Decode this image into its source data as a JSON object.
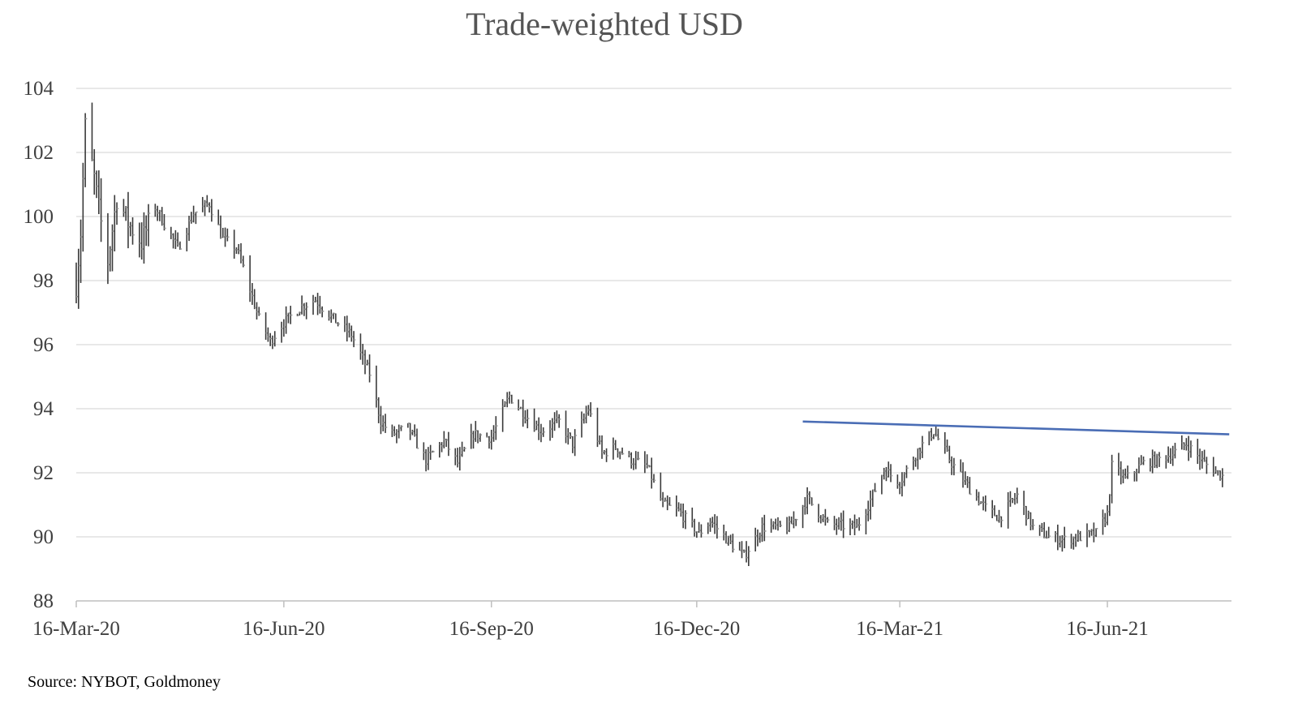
{
  "chart_data": {
    "type": "ohlc",
    "title": "Trade-weighted USD",
    "source": "Source: NYBOT, Goldmoney",
    "xlabel": "",
    "ylabel": "",
    "ylim": [
      88,
      104
    ],
    "y_ticks": [
      "104",
      "102",
      "100",
      "98",
      "96",
      "94",
      "92",
      "90",
      "88"
    ],
    "x_ticks": [
      "16-Mar-20",
      "16-Jun-20",
      "16-Sep-20",
      "16-Dec-20",
      "16-Mar-21",
      "16-Jun-21"
    ],
    "grid": true,
    "bar_color": "#3a3a3a",
    "trendline_color": "#4a6db5",
    "trendline": {
      "from": {
        "date": "2021-02-01",
        "value": 93.6
      },
      "to": {
        "date": "2021-08-09",
        "value": 93.2
      }
    },
    "anchors": [
      [
        "2020-03-16",
        97.9
      ],
      [
        "2020-03-18",
        99.5
      ],
      [
        "2020-03-20",
        102.8
      ],
      [
        "2020-03-24",
        101.2
      ],
      [
        "2020-03-26",
        100.2
      ],
      [
        "2020-03-30",
        98.6
      ],
      [
        "2020-04-03",
        100.6
      ],
      [
        "2020-04-08",
        99.8
      ],
      [
        "2020-04-14",
        99.2
      ],
      [
        "2020-04-20",
        100.3
      ],
      [
        "2020-04-30",
        99.0
      ],
      [
        "2020-05-07",
        100.1
      ],
      [
        "2020-05-14",
        100.4
      ],
      [
        "2020-05-20",
        99.3
      ],
      [
        "2020-05-26",
        99.0
      ],
      [
        "2020-05-29",
        98.4
      ],
      [
        "2020-06-05",
        96.8
      ],
      [
        "2020-06-10",
        96.1
      ],
      [
        "2020-06-16",
        96.7
      ],
      [
        "2020-06-24",
        97.2
      ],
      [
        "2020-06-30",
        97.4
      ],
      [
        "2020-07-08",
        96.8
      ],
      [
        "2020-07-16",
        96.3
      ],
      [
        "2020-07-24",
        95.1
      ],
      [
        "2020-07-29",
        93.6
      ],
      [
        "2020-08-03",
        93.2
      ],
      [
        "2020-08-10",
        93.4
      ],
      [
        "2020-08-18",
        92.4
      ],
      [
        "2020-08-26",
        93.0
      ],
      [
        "2020-09-01",
        92.3
      ],
      [
        "2020-09-08",
        93.2
      ],
      [
        "2020-09-16",
        93.1
      ],
      [
        "2020-09-24",
        94.4
      ],
      [
        "2020-10-01",
        93.8
      ],
      [
        "2020-10-08",
        93.3
      ],
      [
        "2020-10-16",
        93.6
      ],
      [
        "2020-10-22",
        92.9
      ],
      [
        "2020-10-29",
        94.0
      ],
      [
        "2020-11-04",
        92.6
      ],
      [
        "2020-11-10",
        92.8
      ],
      [
        "2020-11-17",
        92.4
      ],
      [
        "2020-11-24",
        92.2
      ],
      [
        "2020-12-01",
        91.0
      ],
      [
        "2020-12-08",
        90.8
      ],
      [
        "2020-12-17",
        90.1
      ],
      [
        "2020-12-22",
        90.5
      ],
      [
        "2020-12-31",
        89.8
      ],
      [
        "2021-01-06",
        89.4
      ],
      [
        "2021-01-14",
        90.3
      ],
      [
        "2021-01-26",
        90.3
      ],
      [
        "2021-02-03",
        91.2
      ],
      [
        "2021-02-12",
        90.4
      ],
      [
        "2021-02-25",
        90.3
      ],
      [
        "2021-03-02",
        91.0
      ],
      [
        "2021-03-09",
        92.1
      ],
      [
        "2021-03-16",
        91.7
      ],
      [
        "2021-03-24",
        92.7
      ],
      [
        "2021-03-31",
        93.3
      ],
      [
        "2021-04-08",
        92.3
      ],
      [
        "2021-04-16",
        91.5
      ],
      [
        "2021-04-23",
        90.9
      ],
      [
        "2021-04-29",
        90.6
      ],
      [
        "2021-05-07",
        91.3
      ],
      [
        "2021-05-14",
        90.3
      ],
      [
        "2021-05-21",
        90.0
      ],
      [
        "2021-05-28",
        89.9
      ],
      [
        "2021-06-04",
        90.0
      ],
      [
        "2021-06-11",
        90.1
      ],
      [
        "2021-06-16",
        90.7
      ],
      [
        "2021-06-18",
        92.2
      ],
      [
        "2021-06-24",
        91.8
      ],
      [
        "2021-07-02",
        92.3
      ],
      [
        "2021-07-08",
        92.4
      ],
      [
        "2021-07-15",
        92.6
      ],
      [
        "2021-07-21",
        92.9
      ],
      [
        "2021-07-29",
        92.3
      ],
      [
        "2021-08-06",
        91.9
      ]
    ]
  }
}
